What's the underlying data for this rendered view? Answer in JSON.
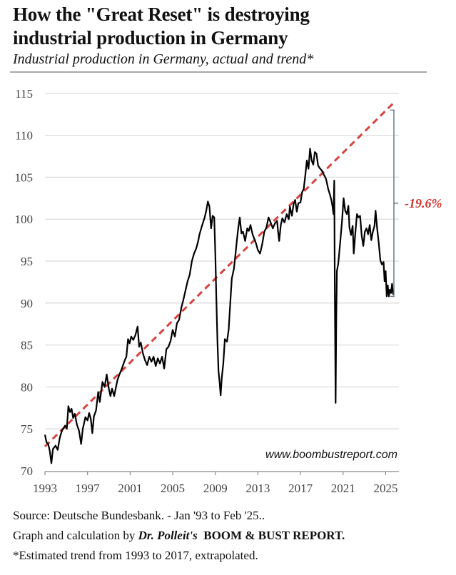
{
  "header": {
    "title_line1": "How the \"Great Reset\" is destroying",
    "title_line2": "industrial production in Germany",
    "subtitle": "Industrial production in Germany, actual and trend*"
  },
  "footer": {
    "source": "Source: Deutsche Bundesbank. - Jan '93 to Feb '25..",
    "credit_prefix": "Graph and calculation by ",
    "credit_author": "Dr. Polleit's",
    "credit_report": "BOOM & BUST REPORT.",
    "note": "*Estimated trend from 1993 to 2017, extrapolated."
  },
  "chart_data": {
    "type": "line",
    "title": "How the \"Great Reset\" is destroying industrial production in Germany",
    "subtitle": "Industrial production in Germany, actual and trend*",
    "xlabel": "",
    "ylabel": "",
    "xlim": [
      1993,
      2026.3
    ],
    "ylim": [
      70,
      115
    ],
    "x_ticks": [
      1993,
      1997,
      2001,
      2005,
      2009,
      2013,
      2017,
      2021,
      2025
    ],
    "y_ticks": [
      70,
      75,
      80,
      85,
      90,
      95,
      100,
      105,
      110,
      115
    ],
    "grid": "horizontal",
    "watermark": "www.boombustreport.com",
    "annotation": {
      "label": "-19.6%",
      "from_value": 113.0,
      "to_value": 90.8,
      "color": "#d0312d"
    },
    "series": [
      {
        "name": "Industrial production (actual)",
        "color": "#000000",
        "style": "solid",
        "points": [
          [
            1993.0,
            74.3
          ],
          [
            1993.15,
            73.4
          ],
          [
            1993.3,
            73.2
          ],
          [
            1993.45,
            72.4
          ],
          [
            1993.6,
            70.9
          ],
          [
            1993.75,
            72.6
          ],
          [
            1994.0,
            73.0
          ],
          [
            1994.2,
            72.5
          ],
          [
            1994.4,
            74.0
          ],
          [
            1994.6,
            74.8
          ],
          [
            1994.9,
            75.4
          ],
          [
            1995.05,
            75.0
          ],
          [
            1995.2,
            77.7
          ],
          [
            1995.35,
            77.0
          ],
          [
            1995.5,
            77.4
          ],
          [
            1995.65,
            76.3
          ],
          [
            1995.8,
            76.8
          ],
          [
            1996.0,
            75.5
          ],
          [
            1996.2,
            74.8
          ],
          [
            1996.4,
            73.2
          ],
          [
            1996.55,
            75.0
          ],
          [
            1996.8,
            76.4
          ],
          [
            1997.0,
            76.0
          ],
          [
            1997.15,
            76.9
          ],
          [
            1997.3,
            76.2
          ],
          [
            1997.45,
            74.5
          ],
          [
            1997.6,
            76.5
          ],
          [
            1997.8,
            77.2
          ],
          [
            1998.0,
            79.4
          ],
          [
            1998.15,
            78.2
          ],
          [
            1998.4,
            80.6
          ],
          [
            1998.6,
            80.0
          ],
          [
            1998.8,
            81.5
          ],
          [
            1999.0,
            79.8
          ],
          [
            1999.15,
            78.9
          ],
          [
            1999.3,
            79.8
          ],
          [
            1999.5,
            78.9
          ],
          [
            1999.8,
            80.8
          ],
          [
            2000.0,
            81.5
          ],
          [
            2000.2,
            82.1
          ],
          [
            2000.5,
            83.2
          ],
          [
            2000.65,
            83.6
          ],
          [
            2000.8,
            85.7
          ],
          [
            2000.95,
            85.2
          ],
          [
            2001.1,
            86.0
          ],
          [
            2001.3,
            85.6
          ],
          [
            2001.5,
            86.2
          ],
          [
            2001.7,
            87.2
          ],
          [
            2001.85,
            84.8
          ],
          [
            2002.0,
            85.3
          ],
          [
            2002.2,
            84.0
          ],
          [
            2002.4,
            83.2
          ],
          [
            2002.6,
            82.6
          ],
          [
            2002.8,
            83.6
          ],
          [
            2003.0,
            83.0
          ],
          [
            2003.2,
            83.6
          ],
          [
            2003.4,
            82.5
          ],
          [
            2003.6,
            83.4
          ],
          [
            2003.8,
            82.8
          ],
          [
            2004.0,
            83.6
          ],
          [
            2004.2,
            82.2
          ],
          [
            2004.4,
            84.5
          ],
          [
            2004.6,
            84.8
          ],
          [
            2004.8,
            85.5
          ],
          [
            2005.0,
            86.8
          ],
          [
            2005.2,
            86.0
          ],
          [
            2005.4,
            87.6
          ],
          [
            2005.6,
            88.0
          ],
          [
            2005.8,
            89.4
          ],
          [
            2006.0,
            90.4
          ],
          [
            2006.2,
            91.5
          ],
          [
            2006.4,
            92.6
          ],
          [
            2006.6,
            93.4
          ],
          [
            2006.8,
            95.0
          ],
          [
            2007.0,
            95.9
          ],
          [
            2007.2,
            96.5
          ],
          [
            2007.4,
            97.4
          ],
          [
            2007.5,
            98.1
          ],
          [
            2007.7,
            99.0
          ],
          [
            2007.9,
            99.8
          ],
          [
            2008.0,
            100.2
          ],
          [
            2008.15,
            101.0
          ],
          [
            2008.3,
            102.1
          ],
          [
            2008.45,
            101.5
          ],
          [
            2008.6,
            98.9
          ],
          [
            2008.75,
            100.4
          ],
          [
            2008.9,
            100.2
          ],
          [
            2009.0,
            96.0
          ],
          [
            2009.1,
            90.4
          ],
          [
            2009.2,
            85.5
          ],
          [
            2009.3,
            81.9
          ],
          [
            2009.4,
            80.6
          ],
          [
            2009.5,
            79.0
          ],
          [
            2009.6,
            81.0
          ],
          [
            2009.75,
            82.8
          ],
          [
            2009.9,
            85.7
          ],
          [
            2010.1,
            85.4
          ],
          [
            2010.25,
            86.8
          ],
          [
            2010.4,
            89.9
          ],
          [
            2010.55,
            92.9
          ],
          [
            2010.75,
            94.1
          ],
          [
            2010.9,
            95.9
          ],
          [
            2011.0,
            97.2
          ],
          [
            2011.15,
            98.9
          ],
          [
            2011.3,
            100.2
          ],
          [
            2011.45,
            98.3
          ],
          [
            2011.6,
            98.5
          ],
          [
            2011.8,
            97.4
          ],
          [
            2012.0,
            98.9
          ],
          [
            2012.15,
            98.6
          ],
          [
            2012.3,
            99.3
          ],
          [
            2012.5,
            98.2
          ],
          [
            2012.8,
            97.2
          ],
          [
            2013.0,
            96.3
          ],
          [
            2013.2,
            95.9
          ],
          [
            2013.4,
            97.0
          ],
          [
            2013.6,
            98.5
          ],
          [
            2013.8,
            99.0
          ],
          [
            2014.0,
            100.2
          ],
          [
            2014.2,
            99.6
          ],
          [
            2014.4,
            98.9
          ],
          [
            2014.6,
            99.5
          ],
          [
            2014.8,
            99.8
          ],
          [
            2014.9,
            98.5
          ],
          [
            2015.0,
            97.4
          ],
          [
            2015.15,
            99.3
          ],
          [
            2015.3,
            100.1
          ],
          [
            2015.5,
            99.6
          ],
          [
            2015.7,
            100.6
          ],
          [
            2015.9,
            100.0
          ],
          [
            2016.0,
            101.5
          ],
          [
            2016.2,
            100.4
          ],
          [
            2016.35,
            101.8
          ],
          [
            2016.5,
            102.3
          ],
          [
            2016.65,
            100.9
          ],
          [
            2016.8,
            101.9
          ],
          [
            2017.0,
            102.0
          ],
          [
            2017.15,
            103.2
          ],
          [
            2017.3,
            103.6
          ],
          [
            2017.45,
            105.2
          ],
          [
            2017.6,
            107.0
          ],
          [
            2017.75,
            106.0
          ],
          [
            2017.9,
            108.4
          ],
          [
            2018.05,
            107.0
          ],
          [
            2018.2,
            106.5
          ],
          [
            2018.35,
            108.0
          ],
          [
            2018.5,
            107.8
          ],
          [
            2018.65,
            106.4
          ],
          [
            2018.8,
            106.1
          ],
          [
            2019.0,
            105.8
          ],
          [
            2019.2,
            105.3
          ],
          [
            2019.4,
            104.8
          ],
          [
            2019.6,
            103.6
          ],
          [
            2019.75,
            103.0
          ],
          [
            2019.9,
            102.3
          ],
          [
            2020.0,
            101.6
          ],
          [
            2020.1,
            100.6
          ],
          [
            2020.17,
            104.6
          ],
          [
            2020.23,
            90.0
          ],
          [
            2020.3,
            78.1
          ],
          [
            2020.36,
            88.0
          ],
          [
            2020.42,
            93.8
          ],
          [
            2020.55,
            94.7
          ],
          [
            2020.75,
            97.5
          ],
          [
            2020.9,
            99.8
          ],
          [
            2021.05,
            102.5
          ],
          [
            2021.2,
            101.0
          ],
          [
            2021.35,
            100.6
          ],
          [
            2021.5,
            101.6
          ],
          [
            2021.6,
            99.0
          ],
          [
            2021.75,
            98.1
          ],
          [
            2021.9,
            99.2
          ],
          [
            2022.0,
            95.9
          ],
          [
            2022.15,
            98.3
          ],
          [
            2022.3,
            100.6
          ],
          [
            2022.45,
            100.2
          ],
          [
            2022.6,
            100.4
          ],
          [
            2022.75,
            98.0
          ],
          [
            2022.9,
            96.8
          ],
          [
            2023.05,
            98.5
          ],
          [
            2023.2,
            98.9
          ],
          [
            2023.35,
            98.2
          ],
          [
            2023.5,
            99.3
          ],
          [
            2023.65,
            97.5
          ],
          [
            2023.8,
            98.5
          ],
          [
            2023.95,
            99.2
          ],
          [
            2024.05,
            101.0
          ],
          [
            2024.2,
            98.9
          ],
          [
            2024.35,
            97.2
          ],
          [
            2024.5,
            95.1
          ],
          [
            2024.65,
            94.6
          ],
          [
            2024.8,
            94.9
          ],
          [
            2024.9,
            92.6
          ],
          [
            2025.0,
            93.8
          ],
          [
            2025.1,
            90.8
          ],
          [
            2025.2,
            92.1
          ],
          [
            2025.3,
            90.8
          ],
          [
            2025.4,
            91.6
          ],
          [
            2025.5,
            91.2
          ],
          [
            2025.6,
            92.3
          ],
          [
            2025.7,
            91.0
          ]
        ]
      },
      {
        "name": "Trend 1993-2017, extrapolated",
        "color": "#d6443f",
        "style": "dashed",
        "points": [
          [
            1993.0,
            72.9
          ],
          [
            2025.7,
            113.8
          ]
        ]
      }
    ]
  }
}
